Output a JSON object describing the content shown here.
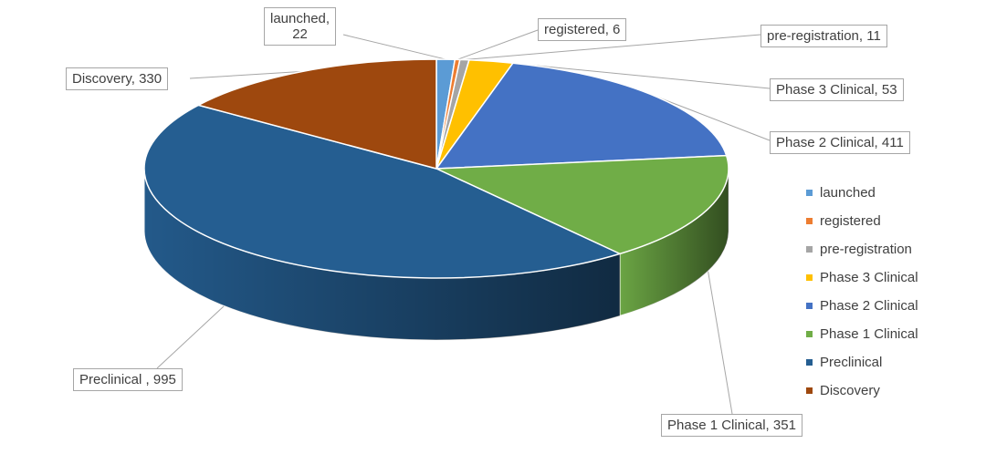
{
  "chart_data": {
    "type": "pie",
    "title": "",
    "legend_position": "right",
    "categories": [
      "launched",
      "registered",
      "pre-registration",
      "Phase 3 Clinical",
      "Phase 2 Clinical",
      "Phase 1 Clinical",
      "Preclinical",
      "Discovery"
    ],
    "values": [
      22,
      6,
      11,
      53,
      411,
      351,
      995,
      330
    ],
    "colors": [
      "#5b9bd5",
      "#ed7d31",
      "#a5a5a5",
      "#ffc000",
      "#4472c4",
      "#70ad47",
      "#255e91",
      "#9e480e"
    ],
    "data_labels": [
      {
        "text": "launched, 22",
        "lines": [
          "launched,",
          "22"
        ]
      },
      {
        "text": "registered, 6",
        "lines": [
          "registered, 6"
        ]
      },
      {
        "text": "pre-registration, 11",
        "lines": [
          "pre-registration, 11"
        ]
      },
      {
        "text": "Phase 3 Clinical, 53",
        "lines": [
          "Phase 3 Clinical, 53"
        ]
      },
      {
        "text": "Phase 2 Clinical, 411",
        "lines": [
          "Phase 2 Clinical, 411"
        ]
      },
      {
        "text": "Phase 1 Clinical, 351",
        "lines": [
          "Phase 1 Clinical, 351"
        ]
      },
      {
        "text": "Preclinical , 995",
        "lines": [
          "Preclinical , 995"
        ]
      },
      {
        "text": "Discovery, 330",
        "lines": [
          "Discovery, 330"
        ]
      }
    ],
    "legend": [
      "launched",
      "registered",
      "pre-registration",
      "Phase 3 Clinical",
      "Phase 2 Clinical",
      "Phase 1 Clinical",
      "Preclinical",
      "Discovery"
    ]
  }
}
